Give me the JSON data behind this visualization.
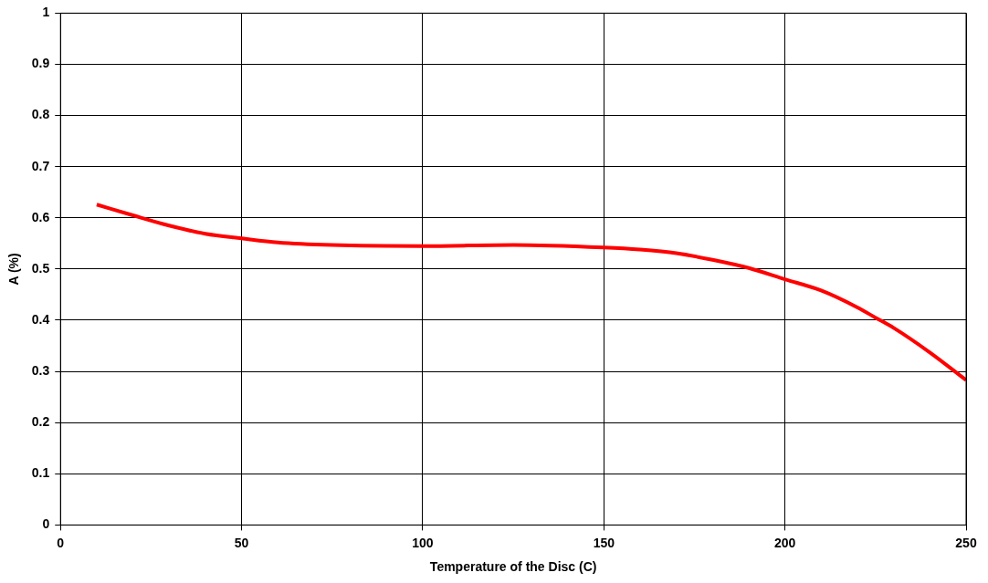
{
  "chart_data": {
    "type": "line",
    "xlabel": "Temperature of the Disc (C)",
    "ylabel": "A (%)",
    "x": [
      10,
      20,
      30,
      40,
      50,
      60,
      75,
      100,
      125,
      150,
      160,
      170,
      180,
      190,
      200,
      210,
      220,
      225,
      230,
      240,
      250
    ],
    "series": [
      {
        "color": "#ff0000",
        "values": [
          0.626,
          0.605,
          0.585,
          0.569,
          0.56,
          0.552,
          0.547,
          0.545,
          0.547,
          0.542,
          0.538,
          0.531,
          0.518,
          0.502,
          0.48,
          0.458,
          0.425,
          0.405,
          0.385,
          0.337,
          0.283
        ]
      }
    ],
    "xlim": [
      0,
      250
    ],
    "xticks": [
      0,
      50,
      100,
      150,
      200,
      250
    ],
    "ylim": [
      0,
      1
    ],
    "yticks": [
      0,
      0.1,
      0.2,
      0.3,
      0.4,
      0.5,
      0.6,
      0.7,
      0.8,
      0.9,
      1
    ],
    "grid": true,
    "legend": false,
    "marker": "none",
    "line_style": "solid"
  }
}
